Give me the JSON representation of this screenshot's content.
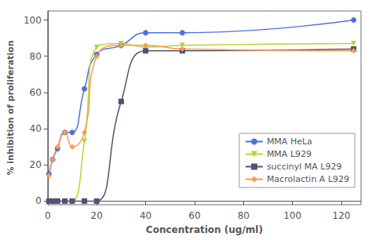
{
  "chart_data": {
    "type": "line",
    "xlabel": "Concentration (ug/ml)",
    "ylabel": "% inhibition of proliferation",
    "xlim": [
      0,
      128
    ],
    "ylim": [
      -2,
      105
    ],
    "xticks": [
      0,
      20,
      40,
      60,
      80,
      100,
      120
    ],
    "yticks": [
      0,
      20,
      40,
      60,
      80,
      100
    ],
    "grid": false,
    "legend": "right",
    "x": [
      0.5,
      2,
      4,
      7,
      10,
      15,
      20,
      30,
      40,
      55,
      125
    ],
    "series": [
      {
        "name": "MMA HeLa",
        "marker": "circle",
        "line_style": "solid",
        "values": [
          15,
          23,
          29,
          38,
          38,
          62,
          81,
          86,
          93,
          93,
          100
        ]
      },
      {
        "name": "MMA L929",
        "marker": "triangle_down",
        "line_style": "solid",
        "values": [
          0,
          0,
          0,
          0,
          0,
          33,
          85,
          87,
          85,
          86,
          87
        ]
      },
      {
        "name": "succinyl MA L929",
        "marker": "square",
        "line_style": "solid",
        "values": [
          0,
          0,
          0,
          0,
          0,
          0,
          0,
          55,
          83,
          83,
          84
        ]
      },
      {
        "name": "Macrolactin A L929",
        "marker": "diamond",
        "line_style": "solid",
        "values": [
          14,
          23,
          30,
          38,
          30,
          38,
          80,
          86,
          86,
          84,
          83
        ]
      }
    ]
  }
}
